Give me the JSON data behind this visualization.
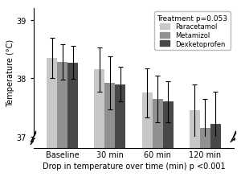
{
  "categories": [
    "Baseline",
    "30 min",
    "60 min",
    "120 min"
  ],
  "series": {
    "Paracetamol": {
      "means": [
        38.35,
        38.15,
        37.75,
        37.45
      ],
      "errors": [
        0.35,
        0.38,
        0.42,
        0.45
      ],
      "color": "#c8c8c8"
    },
    "Metamizol": {
      "means": [
        38.28,
        37.92,
        37.65,
        37.15
      ],
      "errors": [
        0.3,
        0.45,
        0.4,
        0.5
      ],
      "color": "#909090"
    },
    "Dexketoprofen": {
      "means": [
        38.27,
        37.9,
        37.6,
        37.22
      ],
      "errors": [
        0.28,
        0.3,
        0.35,
        0.55
      ],
      "color": "#484848"
    }
  },
  "ylabel": "Temperature (°C)",
  "xlabel": "Drop in temperature over time (min) p <0.001",
  "legend_title": "Treatment p=0.053",
  "bar_width": 0.22,
  "bg_color": "#ffffff"
}
